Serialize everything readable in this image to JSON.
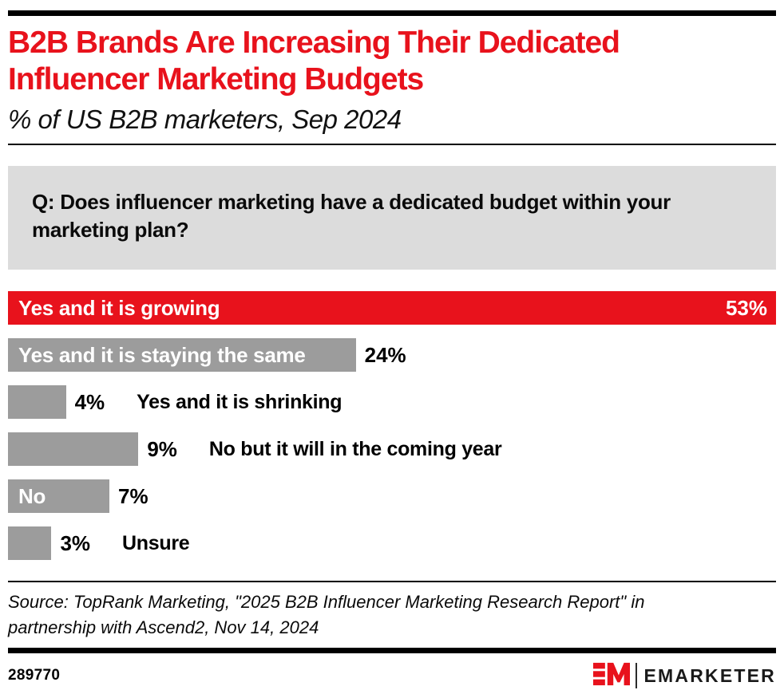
{
  "header": {
    "title_line1": "B2B Brands Are Increasing Their Dedicated",
    "title_line2": "Influencer Marketing Budgets",
    "subtitle": "% of US B2B marketers, Sep 2024",
    "title_color": "#e8121c"
  },
  "question": {
    "line1": "Q: Does influencer marketing have a dedicated budget within your",
    "line2": "marketing plan?"
  },
  "chart_data": {
    "type": "bar",
    "orientation": "horizontal",
    "unit": "%",
    "max_value": 53,
    "categories": [
      "Yes and it is growing",
      "Yes and it is staying the same",
      "Yes and it is shrinking",
      "No but it will in the coming year",
      "No",
      "Unsure"
    ],
    "values": [
      53,
      24,
      4,
      9,
      7,
      3
    ],
    "colors": {
      "highlight": "#e8121c",
      "default": "#9c9c9c"
    },
    "bars": [
      {
        "label": "Yes and it is growing",
        "value": 53,
        "display_value": "53%",
        "color": "#e8121c",
        "label_inside": true,
        "value_inside": true
      },
      {
        "label": "Yes and it is staying the same",
        "value": 24,
        "display_value": "24%",
        "color": "#9c9c9c",
        "label_inside": true,
        "value_inside": false
      },
      {
        "label": "Yes and it is shrinking",
        "value": 4,
        "display_value": "4%",
        "color": "#9c9c9c",
        "label_inside": false,
        "value_inside": false
      },
      {
        "label": "No but it will in the coming year",
        "value": 9,
        "display_value": "9%",
        "color": "#9c9c9c",
        "label_inside": false,
        "value_inside": false
      },
      {
        "label": "No",
        "value": 7,
        "display_value": "7%",
        "color": "#9c9c9c",
        "label_inside": true,
        "value_inside": false
      },
      {
        "label": "Unsure",
        "value": 3,
        "display_value": "3%",
        "color": "#9c9c9c",
        "label_inside": false,
        "value_inside": false
      }
    ]
  },
  "source": {
    "line1": "Source: TopRank Marketing, \"2025 B2B Influencer Marketing Research Report\" in",
    "line2": "partnership with Ascend2, Nov 14, 2024"
  },
  "footer": {
    "chart_id": "289770",
    "brand": "EMARKETER",
    "logo_color": "#e8121c"
  }
}
